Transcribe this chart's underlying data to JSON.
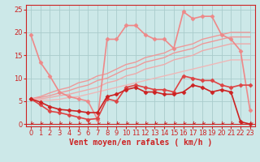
{
  "xlabel": "Vent moyen/en rafales ( km/h )",
  "bg_color": "#cce8e8",
  "grid_color": "#aacccc",
  "xlim": [
    0,
    23
  ],
  "ylim": [
    0,
    26
  ],
  "xticks": [
    0,
    1,
    2,
    3,
    4,
    5,
    6,
    7,
    8,
    9,
    10,
    11,
    12,
    13,
    14,
    15,
    16,
    17,
    18,
    19,
    20,
    21,
    22,
    23
  ],
  "yticks": [
    0,
    5,
    10,
    15,
    20,
    25
  ],
  "series": [
    {
      "x": [
        0,
        1,
        2,
        3,
        4,
        5,
        6,
        7,
        8,
        9,
        10,
        11,
        12,
        13,
        14,
        15,
        16,
        17,
        18,
        19,
        20,
        21,
        22,
        23
      ],
      "y": [
        5.5,
        4.2,
        2.8,
        2.5,
        2.0,
        1.5,
        1.0,
        1.2,
        5.5,
        5.0,
        8.0,
        8.5,
        8.0,
        7.5,
        7.5,
        7.0,
        10.5,
        10.0,
        9.5,
        9.5,
        8.5,
        8.0,
        8.5,
        8.5
      ],
      "color": "#dd4444",
      "lw": 1.2,
      "marker": "D",
      "ms": 2.5,
      "zorder": 4
    },
    {
      "x": [
        0,
        1,
        2,
        3,
        4,
        5,
        6,
        7,
        8,
        9,
        10,
        11,
        12,
        13,
        14,
        15,
        16,
        17,
        18,
        19,
        20,
        21,
        22,
        23
      ],
      "y": [
        5.5,
        4.8,
        3.8,
        3.2,
        3.0,
        2.8,
        2.5,
        2.5,
        6.0,
        6.5,
        7.5,
        8.0,
        7.0,
        7.0,
        6.5,
        6.5,
        7.0,
        8.5,
        8.0,
        7.0,
        7.5,
        7.0,
        0.5,
        0.0
      ],
      "color": "#cc2222",
      "lw": 1.2,
      "marker": "D",
      "ms": 2.5,
      "zorder": 4
    },
    {
      "x": [
        0,
        1,
        2,
        3,
        4,
        5,
        6,
        7,
        8,
        9,
        10,
        11,
        12,
        13,
        14,
        15,
        16,
        17,
        18,
        19,
        20,
        21,
        22,
        23
      ],
      "y": [
        19.5,
        13.5,
        10.5,
        7.0,
        6.0,
        5.5,
        5.0,
        1.0,
        18.5,
        18.5,
        21.5,
        21.5,
        19.5,
        18.5,
        18.5,
        16.5,
        24.5,
        23.0,
        23.5,
        23.5,
        19.5,
        18.5,
        16.0,
        3.0
      ],
      "color": "#ee8888",
      "lw": 1.2,
      "marker": "D",
      "ms": 2.5,
      "zorder": 3
    },
    {
      "x": [
        0,
        1,
        2,
        3,
        4,
        5,
        6,
        7,
        8,
        9,
        10,
        11,
        12,
        13,
        14,
        15,
        16,
        17,
        18,
        19,
        20,
        21,
        22,
        23
      ],
      "y": [
        5.5,
        6.0,
        6.8,
        7.5,
        8.0,
        9.0,
        9.5,
        10.5,
        11.0,
        12.0,
        13.0,
        13.5,
        14.5,
        15.0,
        15.5,
        16.5,
        17.0,
        17.5,
        18.5,
        19.0,
        19.5,
        20.0,
        20.0,
        20.0
      ],
      "color": "#ee9999",
      "lw": 1.0,
      "marker": null,
      "zorder": 2
    },
    {
      "x": [
        0,
        1,
        2,
        3,
        4,
        5,
        6,
        7,
        8,
        9,
        10,
        11,
        12,
        13,
        14,
        15,
        16,
        17,
        18,
        19,
        20,
        21,
        22,
        23
      ],
      "y": [
        5.5,
        5.8,
        6.2,
        6.8,
        7.3,
        8.0,
        8.5,
        9.5,
        10.0,
        11.0,
        12.0,
        12.5,
        13.5,
        14.0,
        14.5,
        15.5,
        16.0,
        16.5,
        17.5,
        18.0,
        18.5,
        19.0,
        19.0,
        19.0
      ],
      "color": "#ee9999",
      "lw": 1.0,
      "marker": null,
      "zorder": 2
    },
    {
      "x": [
        0,
        1,
        2,
        3,
        4,
        5,
        6,
        7,
        8,
        9,
        10,
        11,
        12,
        13,
        14,
        15,
        16,
        17,
        18,
        19,
        20,
        21,
        22,
        23
      ],
      "y": [
        5.5,
        5.5,
        5.8,
        6.2,
        6.5,
        7.0,
        7.5,
        8.0,
        9.0,
        9.5,
        10.5,
        11.0,
        12.0,
        12.5,
        13.0,
        14.0,
        14.5,
        15.0,
        16.0,
        16.5,
        17.0,
        17.5,
        17.5,
        17.5
      ],
      "color": "#eeaaaa",
      "lw": 1.0,
      "marker": null,
      "zorder": 2
    },
    {
      "x": [
        0,
        1,
        2,
        3,
        4,
        5,
        6,
        7,
        8,
        9,
        10,
        11,
        12,
        13,
        14,
        15,
        16,
        17,
        18,
        19,
        20,
        21,
        22,
        23
      ],
      "y": [
        5.5,
        5.3,
        5.2,
        5.4,
        5.8,
        6.0,
        6.5,
        7.0,
        7.5,
        8.0,
        8.5,
        9.0,
        9.5,
        10.0,
        10.5,
        11.0,
        11.5,
        12.0,
        12.5,
        13.0,
        13.5,
        14.0,
        14.0,
        14.0
      ],
      "color": "#eeb8b8",
      "lw": 1.0,
      "marker": null,
      "zorder": 2
    }
  ],
  "xlabel_fontsize": 7,
  "tick_fontsize": 6
}
